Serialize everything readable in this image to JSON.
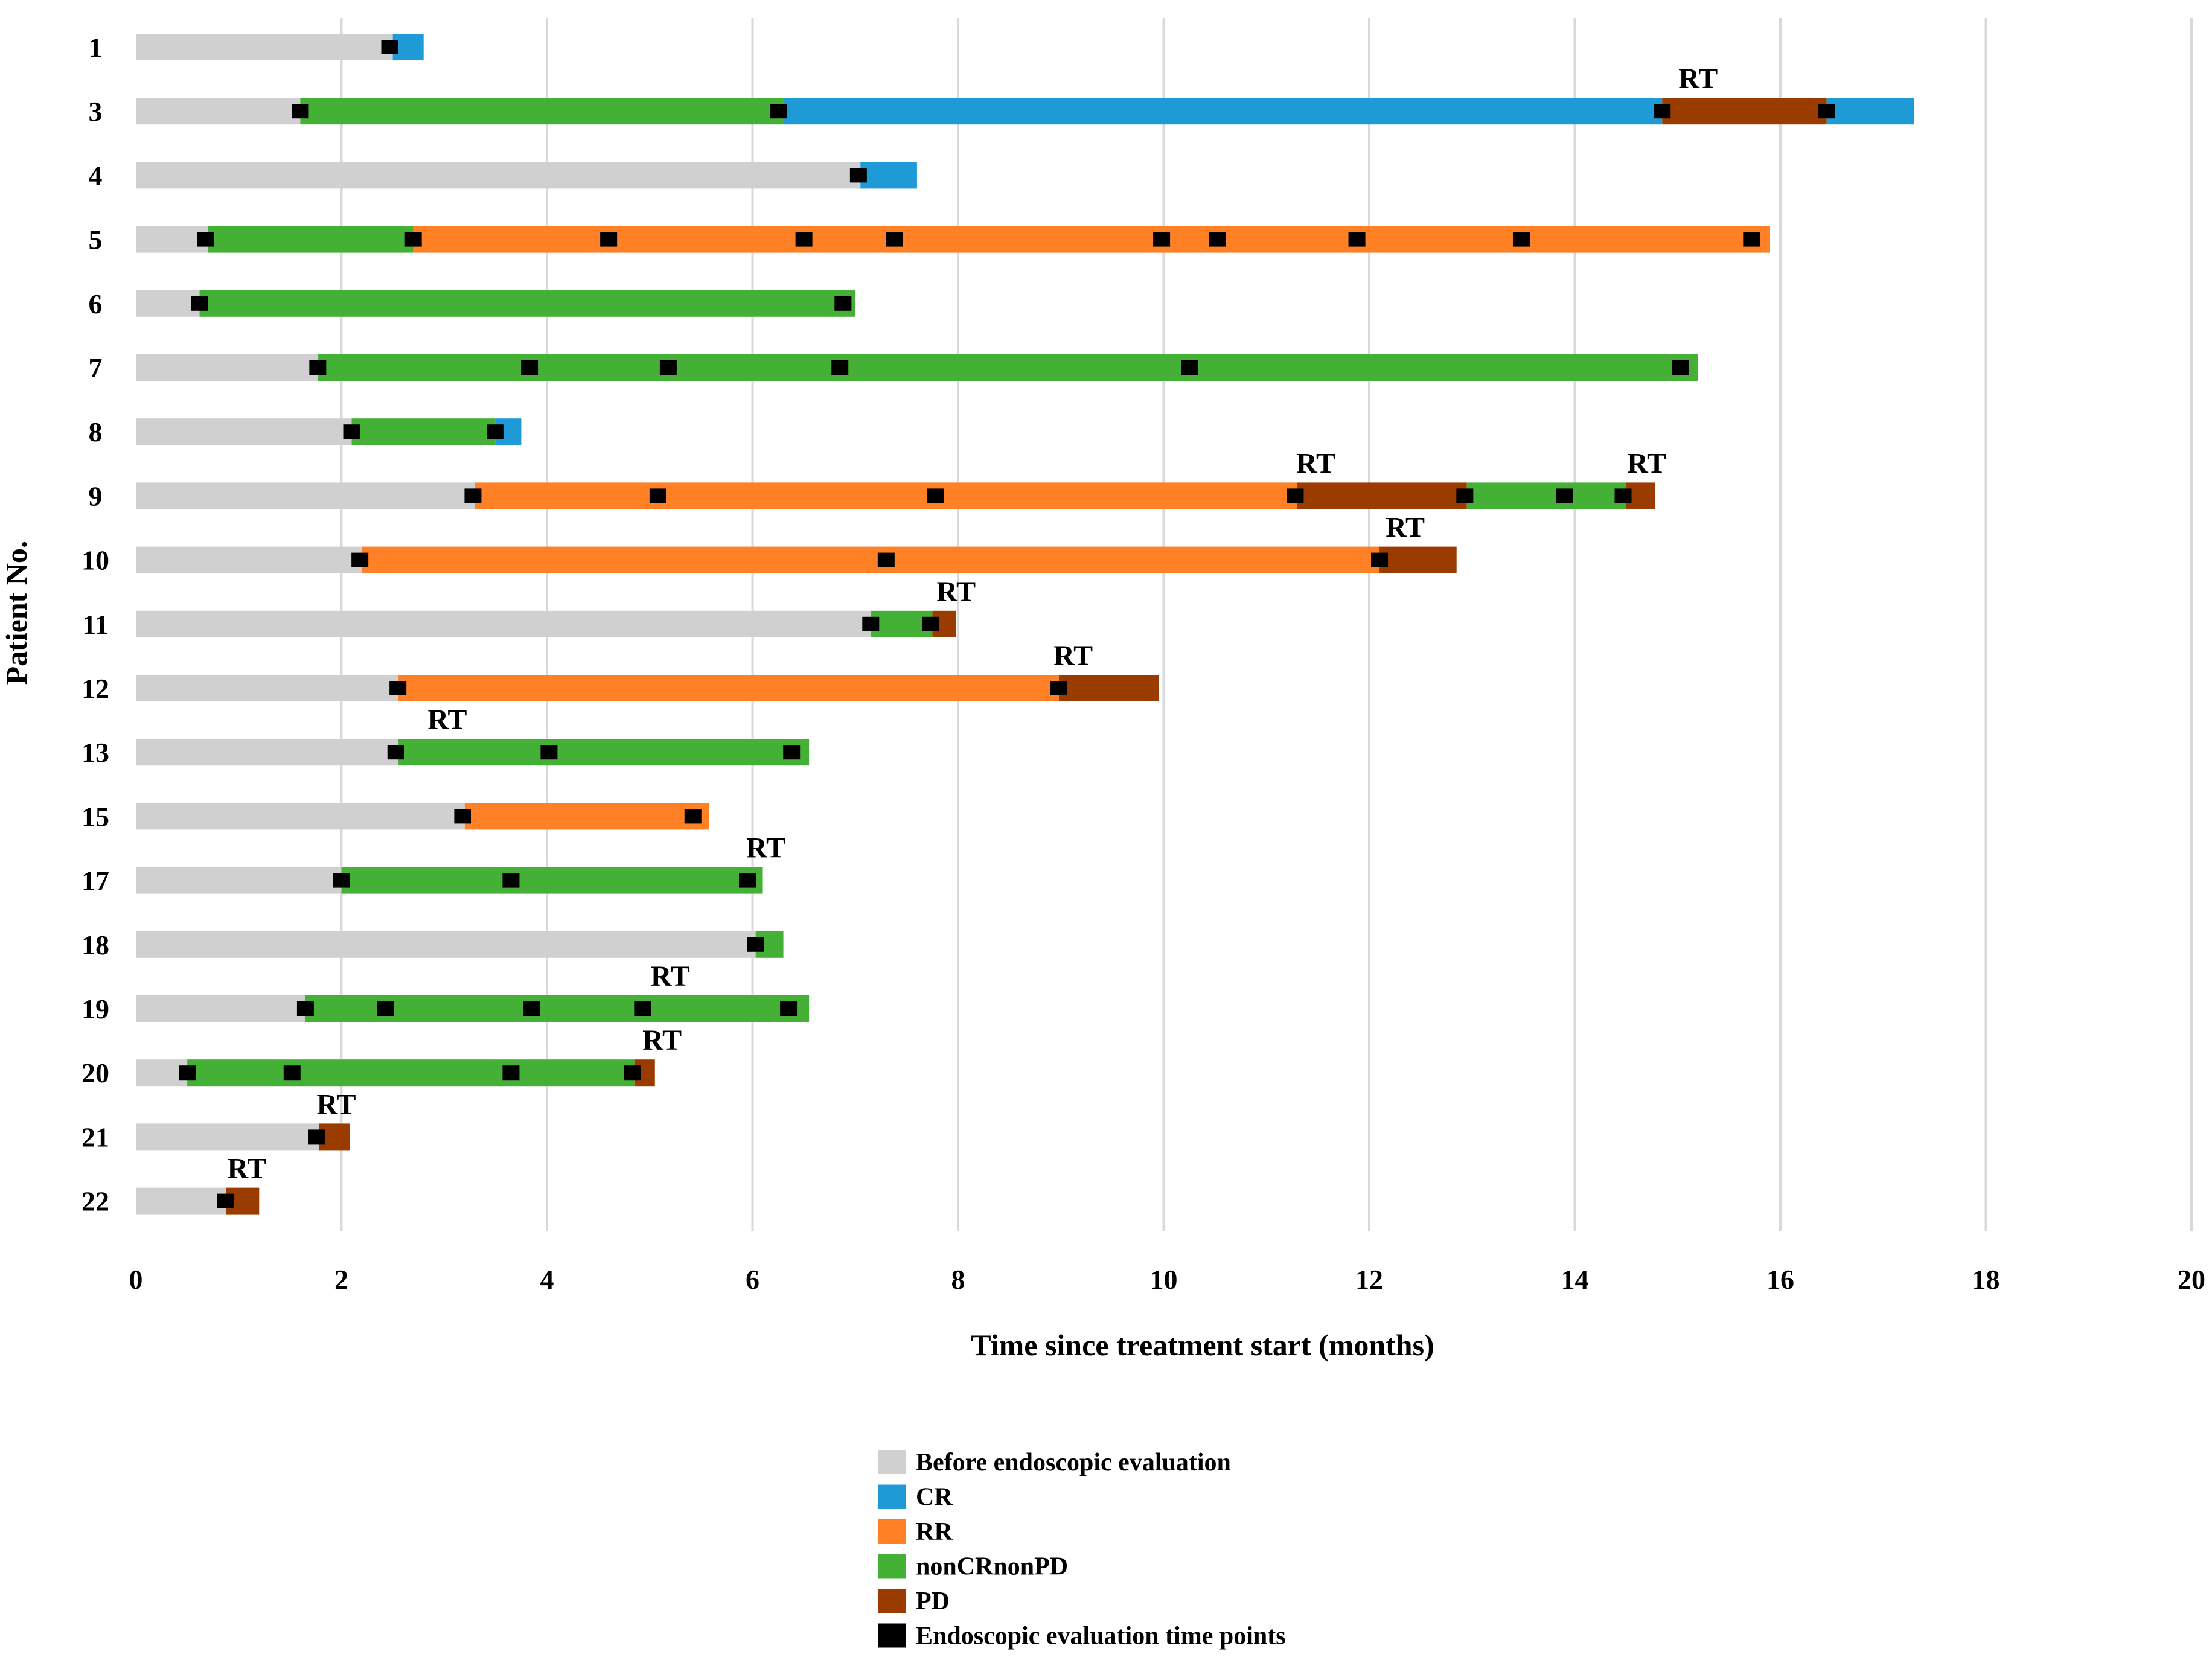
{
  "chart_data": {
    "type": "gantt",
    "title": "",
    "xlabel": "Time since treatment start (months)",
    "ylabel": "Patient No.",
    "xlim": [
      0,
      20
    ],
    "x_ticks": [
      0,
      2,
      4,
      6,
      8,
      10,
      12,
      14,
      16,
      18,
      20
    ],
    "grid": true,
    "legend_position": "bottom-center",
    "colors": {
      "before": "#d0d0d0",
      "CR": "#1e9bd7",
      "RR": "#ff8025",
      "nonCRnonPD": "#44b035",
      "PD": "#9a3b00",
      "eval": "#000000",
      "grid": "#d9d9d9"
    },
    "legend": [
      {
        "key": "before",
        "label": "Before endoscopic evaluation"
      },
      {
        "key": "CR",
        "label": "CR"
      },
      {
        "key": "RR",
        "label": "RR"
      },
      {
        "key": "nonCRnonPD",
        "label": "nonCRnonPD"
      },
      {
        "key": "PD",
        "label": "PD"
      },
      {
        "key": "eval",
        "label": "Endoscopic evaluation time points"
      }
    ],
    "patients": [
      {
        "id": "1",
        "segments": [
          {
            "s": "before",
            "from": 0,
            "to": 2.5
          },
          {
            "s": "CR",
            "from": 2.5,
            "to": 2.8
          }
        ],
        "evals": [
          2.47
        ],
        "rt": []
      },
      {
        "id": "3",
        "segments": [
          {
            "s": "before",
            "from": 0,
            "to": 1.6
          },
          {
            "s": "nonCRnonPD",
            "from": 1.6,
            "to": 6.3
          },
          {
            "s": "CR",
            "from": 6.3,
            "to": 14.85
          },
          {
            "s": "PD",
            "from": 14.85,
            "to": 16.45
          },
          {
            "s": "CR",
            "from": 16.45,
            "to": 17.3
          }
        ],
        "evals": [
          1.6,
          6.25,
          14.85,
          16.45
        ],
        "rt": [
          15.2
        ]
      },
      {
        "id": "4",
        "segments": [
          {
            "s": "before",
            "from": 0,
            "to": 7.05
          },
          {
            "s": "CR",
            "from": 7.05,
            "to": 7.6
          }
        ],
        "evals": [
          7.03
        ],
        "rt": []
      },
      {
        "id": "5",
        "segments": [
          {
            "s": "before",
            "from": 0,
            "to": 0.7
          },
          {
            "s": "nonCRnonPD",
            "from": 0.7,
            "to": 2.7
          },
          {
            "s": "RR",
            "from": 2.7,
            "to": 15.9
          }
        ],
        "evals": [
          0.68,
          2.7,
          4.6,
          6.5,
          7.38,
          9.98,
          10.52,
          11.88,
          13.48,
          15.72
        ],
        "rt": []
      },
      {
        "id": "6",
        "segments": [
          {
            "s": "before",
            "from": 0,
            "to": 0.62
          },
          {
            "s": "nonCRnonPD",
            "from": 0.62,
            "to": 7.0
          }
        ],
        "evals": [
          0.62,
          6.88
        ],
        "rt": []
      },
      {
        "id": "7",
        "segments": [
          {
            "s": "before",
            "from": 0,
            "to": 1.77
          },
          {
            "s": "nonCRnonPD",
            "from": 1.77,
            "to": 15.2
          }
        ],
        "evals": [
          1.77,
          3.83,
          5.18,
          6.85,
          10.25,
          15.03
        ],
        "rt": []
      },
      {
        "id": "8",
        "segments": [
          {
            "s": "before",
            "from": 0,
            "to": 2.1
          },
          {
            "s": "nonCRnonPD",
            "from": 2.1,
            "to": 3.5
          },
          {
            "s": "CR",
            "from": 3.5,
            "to": 3.75
          }
        ],
        "evals": [
          2.1,
          3.5
        ],
        "rt": []
      },
      {
        "id": "9",
        "segments": [
          {
            "s": "before",
            "from": 0,
            "to": 3.3
          },
          {
            "s": "RR",
            "from": 3.3,
            "to": 11.3
          },
          {
            "s": "PD",
            "from": 11.3,
            "to": 12.95
          },
          {
            "s": "nonCRnonPD",
            "from": 12.95,
            "to": 14.5
          },
          {
            "s": "PD",
            "from": 14.5,
            "to": 14.78
          }
        ],
        "evals": [
          3.28,
          5.08,
          7.78,
          11.28,
          12.93,
          13.9,
          14.47
        ],
        "rt": [
          11.48,
          14.7
        ]
      },
      {
        "id": "10",
        "segments": [
          {
            "s": "before",
            "from": 0,
            "to": 2.2
          },
          {
            "s": "RR",
            "from": 2.2,
            "to": 12.1
          },
          {
            "s": "PD",
            "from": 12.1,
            "to": 12.85
          }
        ],
        "evals": [
          2.18,
          7.3,
          12.1
        ],
        "rt": [
          12.35
        ]
      },
      {
        "id": "11",
        "segments": [
          {
            "s": "before",
            "from": 0,
            "to": 7.15
          },
          {
            "s": "nonCRnonPD",
            "from": 7.15,
            "to": 7.75
          },
          {
            "s": "PD",
            "from": 7.75,
            "to": 7.98
          }
        ],
        "evals": [
          7.15,
          7.73
        ],
        "rt": [
          7.98
        ]
      },
      {
        "id": "12",
        "segments": [
          {
            "s": "before",
            "from": 0,
            "to": 2.55
          },
          {
            "s": "RR",
            "from": 2.55,
            "to": 8.98
          },
          {
            "s": "PD",
            "from": 8.98,
            "to": 9.95
          }
        ],
        "evals": [
          2.55,
          8.98
        ],
        "rt": [
          9.12
        ]
      },
      {
        "id": "13",
        "segments": [
          {
            "s": "before",
            "from": 0,
            "to": 2.55
          },
          {
            "s": "nonCRnonPD",
            "from": 2.55,
            "to": 6.55
          }
        ],
        "evals": [
          2.53,
          4.02,
          6.38
        ],
        "rt": [
          3.03
        ]
      },
      {
        "id": "15",
        "segments": [
          {
            "s": "before",
            "from": 0,
            "to": 3.2
          },
          {
            "s": "RR",
            "from": 3.2,
            "to": 5.58
          }
        ],
        "evals": [
          3.18,
          5.42
        ],
        "rt": []
      },
      {
        "id": "17",
        "segments": [
          {
            "s": "before",
            "from": 0,
            "to": 2.0
          },
          {
            "s": "nonCRnonPD",
            "from": 2.0,
            "to": 6.1
          }
        ],
        "evals": [
          2.0,
          3.65,
          5.95
        ],
        "rt": [
          6.13
        ]
      },
      {
        "id": "18",
        "segments": [
          {
            "s": "before",
            "from": 0,
            "to": 6.03
          },
          {
            "s": "nonCRnonPD",
            "from": 6.03,
            "to": 6.3
          }
        ],
        "evals": [
          6.03
        ],
        "rt": []
      },
      {
        "id": "19",
        "segments": [
          {
            "s": "before",
            "from": 0,
            "to": 1.65
          },
          {
            "s": "nonCRnonPD",
            "from": 1.65,
            "to": 6.55
          }
        ],
        "evals": [
          1.65,
          2.43,
          3.85,
          4.93,
          6.35
        ],
        "rt": [
          5.2
        ]
      },
      {
        "id": "20",
        "segments": [
          {
            "s": "before",
            "from": 0,
            "to": 0.5
          },
          {
            "s": "nonCRnonPD",
            "from": 0.5,
            "to": 4.85
          },
          {
            "s": "PD",
            "from": 4.85,
            "to": 5.05
          }
        ],
        "evals": [
          0.5,
          1.52,
          3.65,
          4.83
        ],
        "rt": [
          5.12
        ]
      },
      {
        "id": "21",
        "segments": [
          {
            "s": "before",
            "from": 0,
            "to": 1.78
          },
          {
            "s": "PD",
            "from": 1.78,
            "to": 2.08
          }
        ],
        "evals": [
          1.76
        ],
        "rt": [
          1.95
        ]
      },
      {
        "id": "22",
        "segments": [
          {
            "s": "before",
            "from": 0,
            "to": 0.88
          },
          {
            "s": "PD",
            "from": 0.88,
            "to": 1.2
          }
        ],
        "evals": [
          0.87
        ],
        "rt": [
          1.08
        ]
      }
    ],
    "annotation_label": "RT"
  }
}
